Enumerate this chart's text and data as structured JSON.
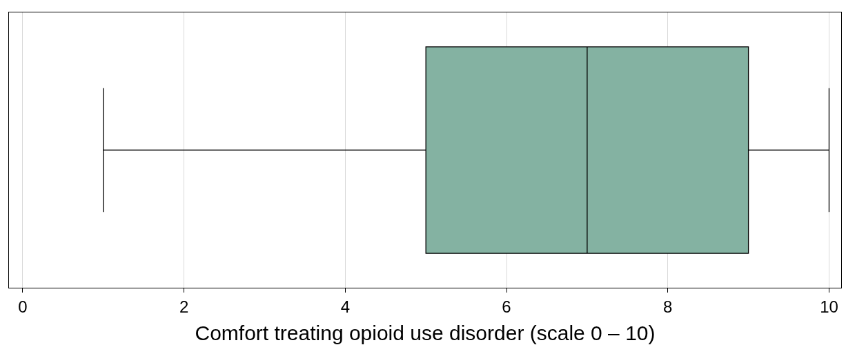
{
  "chart_data": {
    "type": "box",
    "orientation": "horizontal",
    "xlabel": "Comfort treating opioid use disorder (scale 0 – 10)",
    "categories": [
      null
    ],
    "boxes": [
      {
        "low": 1,
        "q1": 5,
        "median": 7,
        "q3": 9,
        "high": 10
      }
    ],
    "color": "#84b2a2",
    "xlim": [
      -0.17,
      10.15
    ],
    "xticks": [
      0,
      2,
      4,
      6,
      8,
      10
    ],
    "grid": "x",
    "tick_labels": "x"
  }
}
